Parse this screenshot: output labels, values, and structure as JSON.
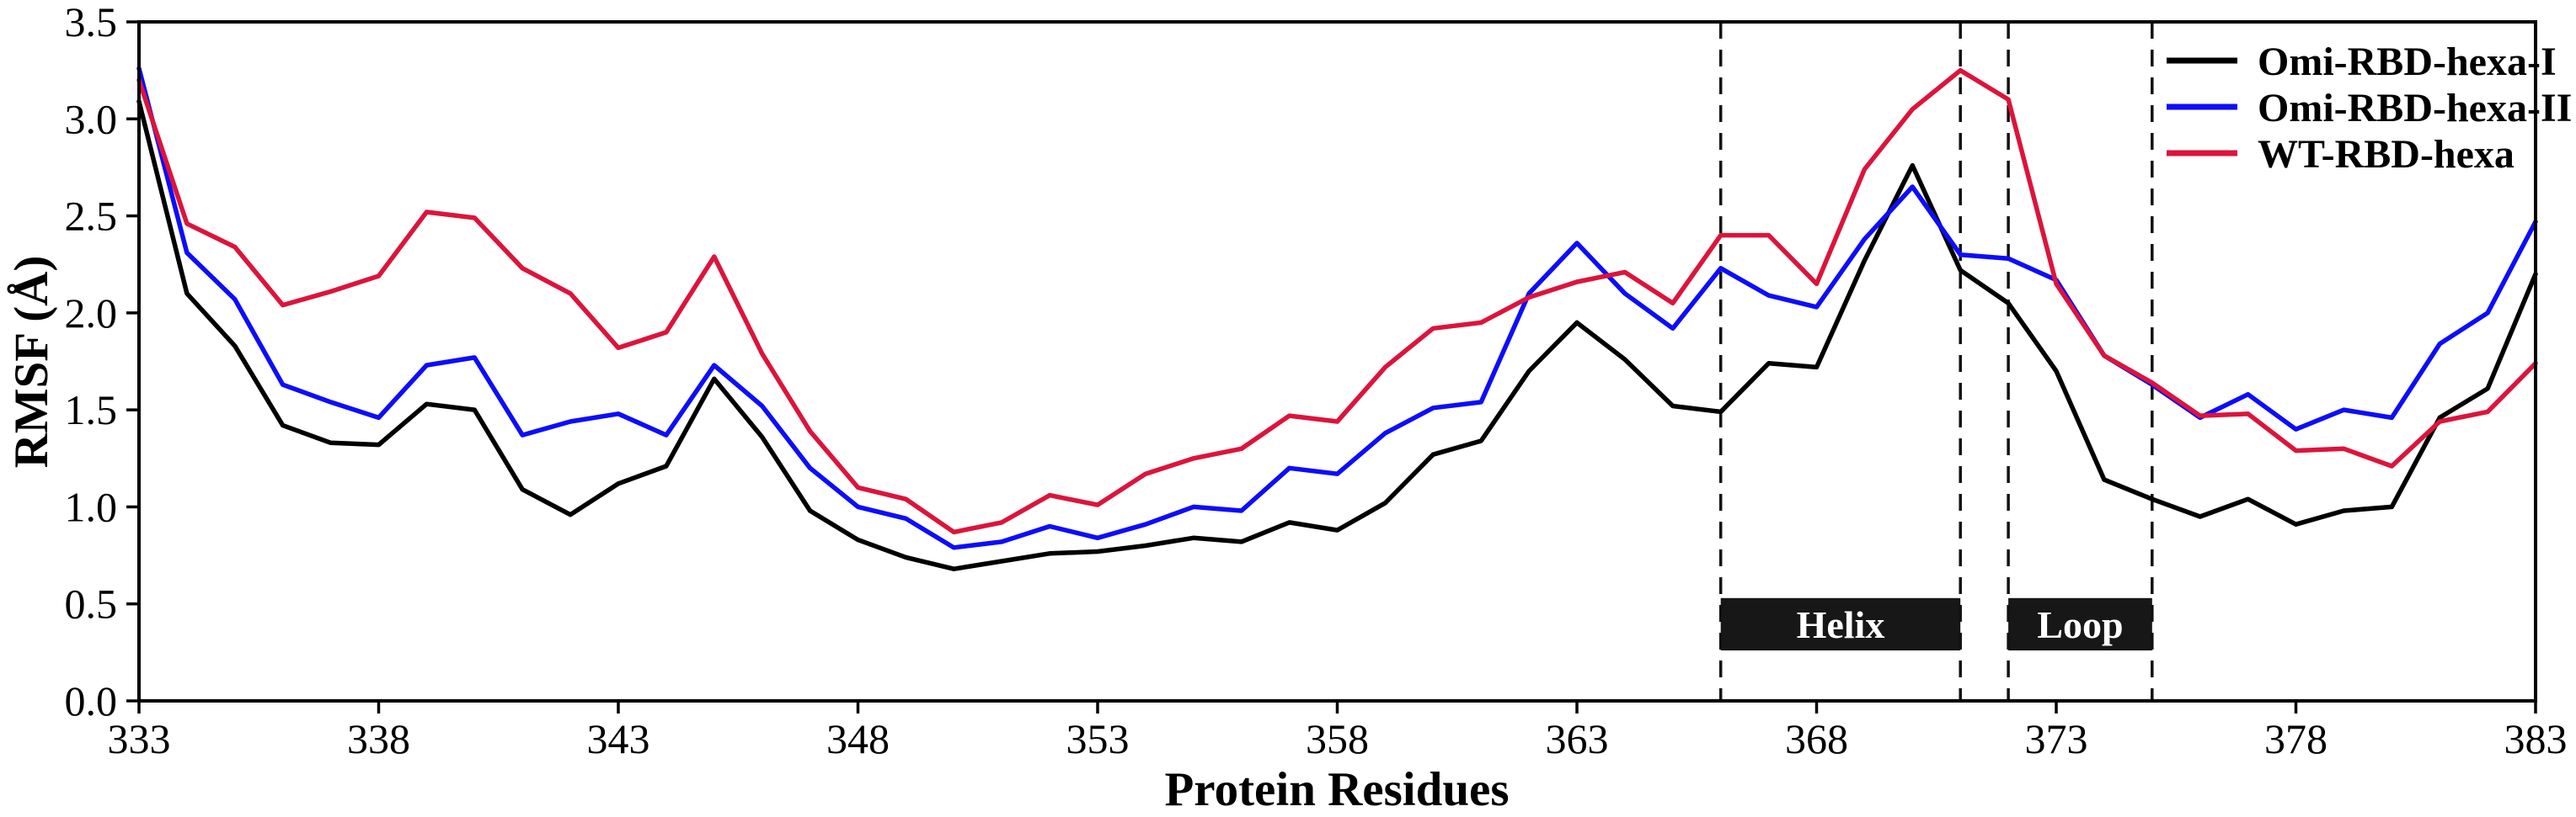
{
  "y_axis": {
    "label": "RMSF (Å)",
    "tick_labels": [
      "0.0",
      "0.5",
      "1.0",
      "1.5",
      "2.0",
      "2.5",
      "3.0",
      "3.5"
    ]
  },
  "x_axis": {
    "label": "Protein Residues",
    "tick_labels": [
      "333",
      "338",
      "343",
      "348",
      "353",
      "358",
      "363",
      "368",
      "373",
      "378",
      "383"
    ]
  },
  "legend": {
    "entries": [
      {
        "label": "Omi-RBD-hexa-I",
        "color": "#000000"
      },
      {
        "label": "Omi-RBD-hexa-II",
        "color": "#0d0dfa"
      },
      {
        "label": "WT-RBD-hexa",
        "color": "#dc143c"
      }
    ]
  },
  "annotations": {
    "dashed_lines_at_residues": [
      366,
      371,
      372,
      375
    ],
    "dash_color": "#111111",
    "regions": [
      {
        "label": "Helix",
        "start_residue": 366,
        "end_residue": 371
      },
      {
        "label": "Loop",
        "start_residue": 372,
        "end_residue": 375
      }
    ],
    "region_bar_rmsf_range": [
      0.26,
      0.53
    ],
    "bar_color": "#171717",
    "bar_text_color": "#ffffff"
  },
  "chart_data": {
    "type": "line",
    "title": "",
    "xlabel": "Protein Residues",
    "ylabel": "RMSF (Å)",
    "xlim": [
      333,
      383
    ],
    "ylim": [
      0.0,
      3.5
    ],
    "grid": false,
    "legend_position": "upper right",
    "x": [
      333,
      334,
      335,
      336,
      337,
      338,
      339,
      340,
      341,
      342,
      343,
      344,
      345,
      346,
      347,
      348,
      349,
      350,
      351,
      352,
      353,
      354,
      355,
      356,
      357,
      358,
      359,
      360,
      361,
      362,
      363,
      364,
      365,
      366,
      367,
      368,
      369,
      370,
      371,
      372,
      373,
      374,
      375,
      376,
      377,
      378,
      379,
      380,
      381,
      382,
      383
    ],
    "series": [
      {
        "name": "Omi-RBD-hexa-I",
        "color": "#000000",
        "values": [
          3.09,
          2.1,
          1.83,
          1.42,
          1.33,
          1.32,
          1.53,
          1.5,
          1.09,
          0.96,
          1.12,
          1.21,
          1.66,
          1.36,
          0.98,
          0.83,
          0.74,
          0.68,
          0.72,
          0.76,
          0.77,
          0.8,
          0.84,
          0.82,
          0.92,
          0.88,
          1.02,
          1.27,
          1.34,
          1.7,
          1.95,
          1.76,
          1.52,
          1.49,
          1.74,
          1.72,
          2.27,
          2.76,
          2.22,
          2.05,
          1.7,
          1.14,
          1.04,
          0.95,
          1.04,
          0.91,
          0.98,
          1.0,
          1.46,
          1.61,
          2.2
        ]
      },
      {
        "name": "Omi-RBD-hexa-II",
        "color": "#0d0dfa",
        "values": [
          3.26,
          2.31,
          2.07,
          1.63,
          1.54,
          1.46,
          1.73,
          1.77,
          1.37,
          1.44,
          1.48,
          1.37,
          1.73,
          1.52,
          1.2,
          1.0,
          0.94,
          0.79,
          0.82,
          0.9,
          0.84,
          0.91,
          1.0,
          0.98,
          1.2,
          1.17,
          1.38,
          1.51,
          1.54,
          2.1,
          2.36,
          2.1,
          1.92,
          2.23,
          2.09,
          2.03,
          2.38,
          2.65,
          2.3,
          2.28,
          2.17,
          1.78,
          1.63,
          1.46,
          1.58,
          1.4,
          1.5,
          1.46,
          1.84,
          2.0,
          2.47
        ]
      },
      {
        "name": "WT-RBD-hexa",
        "color": "#dc143c",
        "values": [
          3.2,
          2.46,
          2.34,
          2.04,
          2.11,
          2.19,
          2.52,
          2.49,
          2.23,
          2.1,
          1.82,
          1.9,
          2.29,
          1.79,
          1.39,
          1.1,
          1.04,
          0.87,
          0.92,
          1.06,
          1.01,
          1.17,
          1.25,
          1.3,
          1.47,
          1.44,
          1.72,
          1.92,
          1.95,
          2.08,
          2.16,
          2.21,
          2.05,
          2.4,
          2.4,
          2.15,
          2.74,
          3.05,
          3.25,
          3.1,
          2.15,
          1.78,
          1.64,
          1.47,
          1.48,
          1.29,
          1.3,
          1.21,
          1.44,
          1.49,
          1.74
        ]
      }
    ]
  }
}
